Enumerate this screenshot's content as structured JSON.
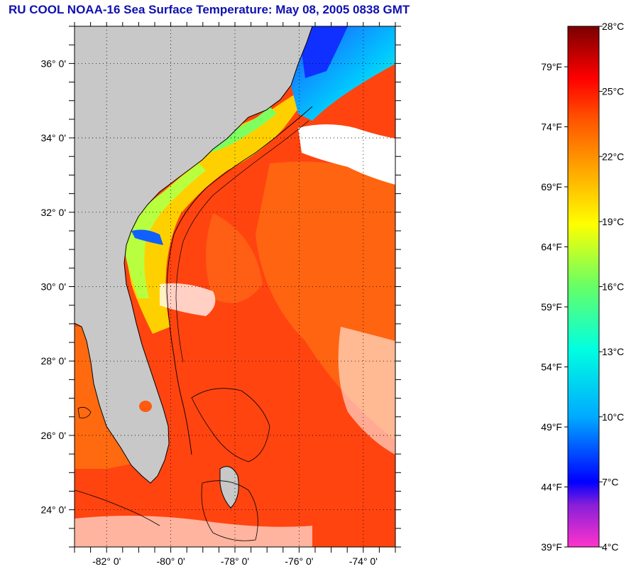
{
  "title": "RU COOL  NOAA-16  Sea Surface Temperature:  May 08, 2005 0838 GMT",
  "map": {
    "lon_range": [
      -83,
      -73
    ],
    "lat_range": [
      23,
      37
    ],
    "lat_ticks": [
      {
        "value": 36,
        "label": "36° 0'"
      },
      {
        "value": 34,
        "label": "34° 0'"
      },
      {
        "value": 32,
        "label": "32° 0'"
      },
      {
        "value": 30,
        "label": "30° 0'"
      },
      {
        "value": 28,
        "label": "28° 0'"
      },
      {
        "value": 26,
        "label": "26° 0'"
      },
      {
        "value": 24,
        "label": "24° 0'"
      }
    ],
    "lon_ticks": [
      {
        "value": -82,
        "label": "-82° 0'"
      },
      {
        "value": -80,
        "label": "-80° 0'"
      },
      {
        "value": -78,
        "label": "-78° 0'"
      },
      {
        "value": -76,
        "label": "-76° 0'"
      },
      {
        "value": -74,
        "label": "-74° 0'"
      }
    ],
    "gridlines": true,
    "colors": {
      "land": "#c8c8c8",
      "cloud": "#ffffff",
      "coast": "#000000"
    }
  },
  "colorbar": {
    "celsius_range": [
      4,
      28
    ],
    "fahrenheit_range": [
      39,
      82
    ],
    "celsius_labels": [
      "28°C",
      "25°C",
      "22°C",
      "19°C",
      "16°C",
      "13°C",
      "10°C",
      "7°C",
      "4°C"
    ],
    "fahrenheit_labels": [
      "79°F",
      "74°F",
      "69°F",
      "64°F",
      "59°F",
      "54°F",
      "49°F",
      "44°F",
      "39°F"
    ],
    "colors": [
      "#ff33cc",
      "#7f1fd8",
      "#0000ff",
      "#00aaff",
      "#00ffe0",
      "#66ff66",
      "#ffff00",
      "#ffaa00",
      "#ff5500",
      "#ff0000",
      "#800000"
    ]
  }
}
